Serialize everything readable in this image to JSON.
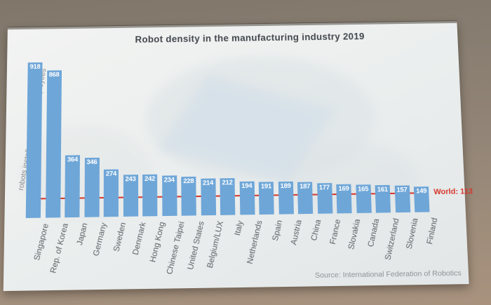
{
  "chart_data": {
    "type": "bar",
    "title": "Robot density in the manufacturing industry 2019",
    "ylabel": "robots installed per 10,000 employees",
    "categories": [
      "Singapore",
      "Rep. of Korea",
      "Japan",
      "Germany",
      "Sweden",
      "Denmark",
      "Hong Kong",
      "Chinese Taipei",
      "United States",
      "Belgium/LUX",
      "Italy",
      "Netherlands",
      "Spain",
      "Austria",
      "China",
      "France",
      "Slovakia",
      "Canada",
      "Switzerland",
      "Slovenia",
      "Finland"
    ],
    "values": [
      918,
      868,
      364,
      346,
      274,
      243,
      242,
      234,
      228,
      214,
      212,
      194,
      191,
      189,
      187,
      177,
      169,
      165,
      161,
      157,
      149
    ],
    "world": {
      "label": "World: 113",
      "value": 113
    },
    "source": "Source: International Federation of Robotics",
    "bar_color": "#6ea6d8",
    "line_color": "#d6372c",
    "value_label_color": "#ffffff",
    "ylim": [
      0,
      960
    ],
    "grid": "off",
    "value_labels_position": "inside-top"
  }
}
